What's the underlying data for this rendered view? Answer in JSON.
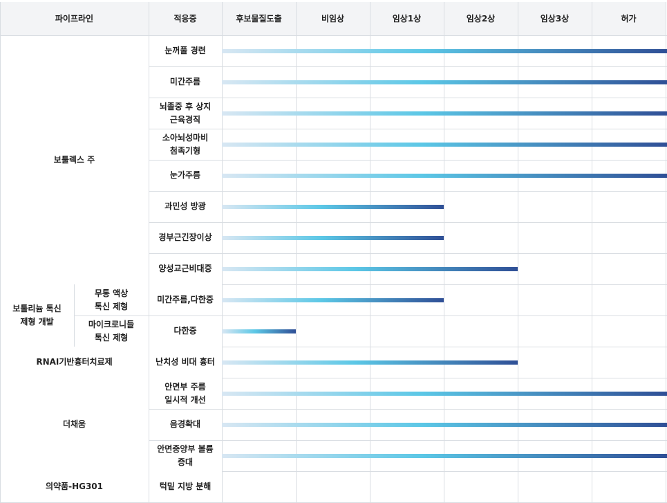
{
  "chart_data": {
    "type": "table",
    "stage_header": "파이프라인",
    "indication_header": "적응증",
    "stages": [
      "후보물질도출",
      "비임상",
      "임상1상",
      "임상2상",
      "임상3상",
      "허가"
    ],
    "groups": [
      {
        "name": "보툴렉스 주",
        "subgroups": [
          {
            "name": "",
            "rows": [
              {
                "indication": "눈꺼풀 경련",
                "stage_reached": "허가"
              },
              {
                "indication": "미간주름",
                "stage_reached": "허가"
              },
              {
                "indication": "뇌졸중 후 상지\n근육경직",
                "stage_reached": "허가"
              },
              {
                "indication": "소아뇌성마비\n첨족기형",
                "stage_reached": "허가"
              },
              {
                "indication": "눈가주름",
                "stage_reached": "허가"
              },
              {
                "indication": "과민성 방광",
                "stage_reached": "임상1상"
              },
              {
                "indication": "경부근긴장이상",
                "stage_reached": "임상1상"
              },
              {
                "indication": "양성교근비대증",
                "stage_reached": "임상2상"
              }
            ]
          }
        ]
      },
      {
        "name": "보툴리늄 톡신\n제형 개발",
        "subgroups": [
          {
            "name": "무통 액상\n톡신 제형",
            "rows": [
              {
                "indication": "미간주름,다한증",
                "stage_reached": "임상1상"
              }
            ]
          },
          {
            "name": "마이크로니들\n톡신 제형",
            "rows": [
              {
                "indication": "다한증",
                "stage_reached": "후보물질도출"
              }
            ]
          }
        ]
      },
      {
        "name": "RNAI기반흉터치료제",
        "subgroups": [
          {
            "name": "",
            "rows": [
              {
                "indication": "난치성 비대 흉터",
                "stage_reached": "임상2상"
              }
            ]
          }
        ]
      },
      {
        "name": "더채움",
        "subgroups": [
          {
            "name": "",
            "rows": [
              {
                "indication": "안면부 주름\n일시적 개선",
                "stage_reached": "허가"
              },
              {
                "indication": "음경확대",
                "stage_reached": "허가"
              },
              {
                "indication": "안면중앙부 볼륨\n증대",
                "stage_reached": "허가"
              }
            ]
          }
        ]
      },
      {
        "name": "의약품-HG301",
        "subgroups": [
          {
            "name": "",
            "rows": [
              {
                "indication": "턱밑 지방 분해",
                "stage_reached": null
              }
            ]
          }
        ]
      }
    ],
    "bar_gradient": [
      "#d8e7f3",
      "#5bc7e6",
      "#2f4f96"
    ],
    "grid_color": "#d9dde2",
    "header_bg": "#f3f4f6"
  }
}
